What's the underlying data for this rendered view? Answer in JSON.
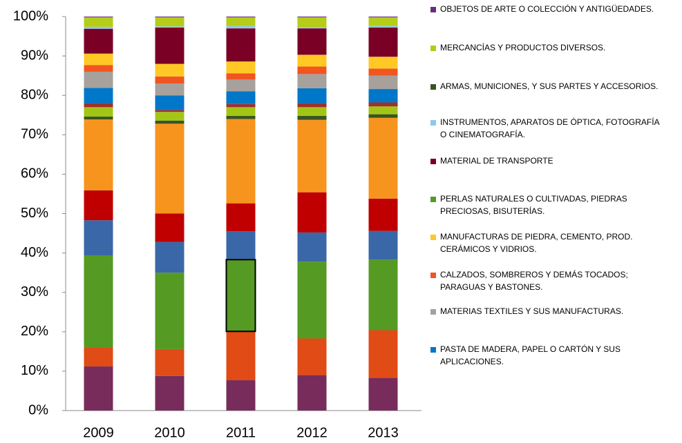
{
  "chart_data": {
    "type": "stacked_bar_100",
    "categories": [
      "2009",
      "2010",
      "2011",
      "2012",
      "2013"
    ],
    "ylim": [
      0,
      100
    ],
    "yticks": [
      {
        "value": 0,
        "label": "0%"
      },
      {
        "value": 10,
        "label": "10%"
      },
      {
        "value": 20,
        "label": "20%"
      },
      {
        "value": 30,
        "label": "30%"
      },
      {
        "value": 40,
        "label": "40%"
      },
      {
        "value": 50,
        "label": "50%"
      },
      {
        "value": 60,
        "label": "60%"
      },
      {
        "value": 70,
        "label": "70%"
      },
      {
        "value": 80,
        "label": "80%"
      },
      {
        "value": 90,
        "label": "90%"
      },
      {
        "value": 100,
        "label": "100%"
      }
    ],
    "series": [
      {
        "color": "#772c5b",
        "values": [
          11.2,
          8.8,
          7.7,
          9.0,
          8.3
        ]
      },
      {
        "color": "#e04b16",
        "values": [
          4.9,
          6.8,
          12.4,
          9.3,
          12.1
        ]
      },
      {
        "color": "#559a22",
        "values": [
          23.3,
          19.4,
          18.2,
          19.5,
          17.9
        ]
      },
      {
        "color": "#3a67a8",
        "values": [
          8.9,
          7.8,
          7.2,
          7.4,
          7.3
        ]
      },
      {
        "color": "#c00000",
        "values": [
          7.6,
          7.2,
          7.1,
          10.2,
          8.2
        ]
      },
      {
        "color": "#f7941d",
        "values": [
          18.0,
          22.8,
          21.4,
          18.4,
          20.5
        ]
      },
      {
        "color": "#375623",
        "values": [
          0.7,
          0.8,
          0.8,
          1.0,
          0.9
        ]
      },
      {
        "color": "#a3c516",
        "values": [
          2.4,
          2.2,
          2.2,
          2.2,
          2.0
        ]
      },
      {
        "color": "#a0302a",
        "values": [
          1.0,
          0.5,
          0.8,
          1.0,
          1.0
        ]
      },
      {
        "color": "#0077c8",
        "values": [
          3.9,
          3.7,
          3.2,
          3.8,
          3.4
        ]
      },
      {
        "color": "#a6a19c",
        "values": [
          4.1,
          3.0,
          3.0,
          3.6,
          3.4
        ]
      },
      {
        "color": "#f05522",
        "values": [
          1.7,
          1.8,
          1.6,
          1.9,
          1.8
        ]
      },
      {
        "color": "#ffc825",
        "values": [
          2.9,
          3.2,
          3.0,
          3.0,
          3.0
        ]
      },
      {
        "color": "#7b0025",
        "values": [
          6.3,
          9.2,
          8.4,
          6.7,
          7.4
        ]
      },
      {
        "color": "#8dc8f0",
        "values": [
          0.5,
          0.3,
          0.6,
          0.3,
          0.4
        ]
      },
      {
        "color": "#b5cc18",
        "values": [
          2.4,
          2.3,
          2.2,
          2.5,
          2.2
        ]
      },
      {
        "color": "#6b2c80",
        "values": [
          0.2,
          0.2,
          0.2,
          0.2,
          0.2
        ]
      }
    ],
    "legend": [
      {
        "color": "#6b2c80",
        "lines": [
          "OBJETOS DE ARTE O COLECCIÓN Y ANTIGÜEDADES."
        ]
      },
      {
        "color": "#b5cc18",
        "lines": [
          "MERCANCÍAS Y PRODUCTOS DIVERSOS."
        ]
      },
      {
        "color": "#375623",
        "lines": [
          "ARMAS, MUNICIONES, Y SUS PARTES Y ACCESORIOS."
        ]
      },
      {
        "color": "#8dc8f0",
        "lines": [
          "INSTRUMENTOS, APARATOS DE ÓPTICA, FOTOGRAFÍA",
          "O CINEMATOGRAFÍA."
        ]
      },
      {
        "color": "#7b0025",
        "lines": [
          "MATERIAL DE TRANSPORTE"
        ]
      },
      {
        "color": "#559a22",
        "lines": [
          "PERLAS NATURALES O CULTIVADAS, PIEDRAS",
          "PRECIOSAS, BISUTERÍAS."
        ]
      },
      {
        "color": "#ffc825",
        "lines": [
          "MANUFACTURAS DE PIEDRA, CEMENTO, PROD.",
          "CERÁMICOS Y VIDRIOS."
        ]
      },
      {
        "color": "#f05522",
        "lines": [
          "CALZADOS, SOMBREROS Y DEMÁS TOCADOS;",
          "PARAGUAS Y BASTONES."
        ]
      },
      {
        "color": "#a6a19c",
        "lines": [
          "MATERIAS TEXTILES Y SUS MANUFACTURAS."
        ]
      },
      {
        "color": "#0077c8",
        "lines": [
          "PASTA DE MADERA, PAPEL O CARTÓN Y SUS",
          "APLICACIONES."
        ]
      }
    ]
  }
}
